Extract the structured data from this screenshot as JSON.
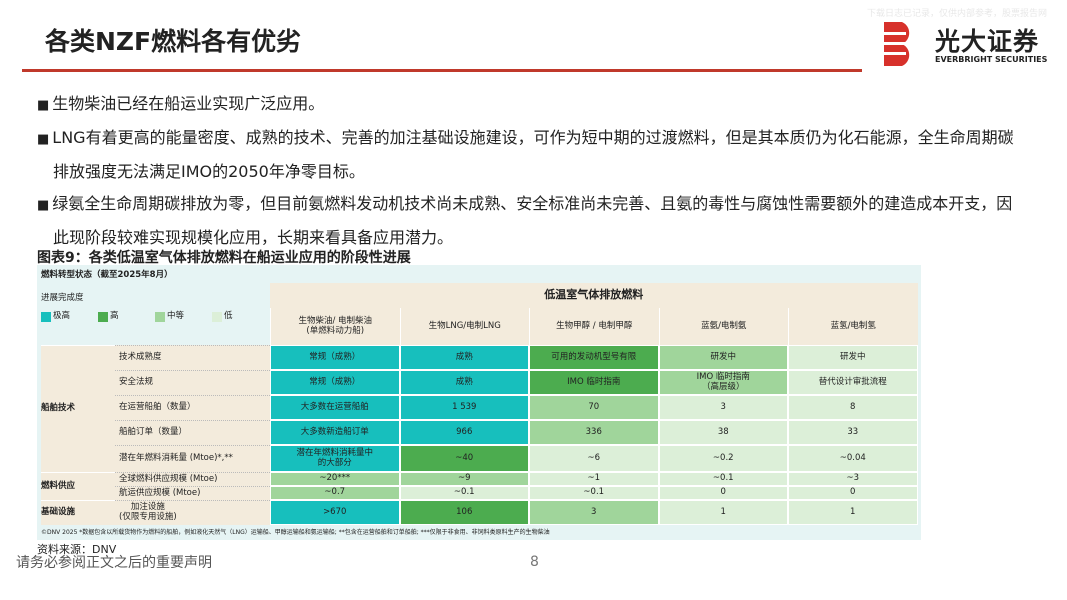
{
  "header": {
    "title": "各类NZF燃料各有优劣",
    "logo_name": "光大证券",
    "logo_sub": "EVERBRIGHT SECURITIES",
    "watermark": "下载日志已记录，仅供内部参考，股票报告网"
  },
  "bullets": [
    "生物柴油已经在船运业实现广泛应用。",
    "LNG有着更高的能量密度、成熟的技术、完善的加注基础设施建设，可作为短中期的过渡燃料，但是其本质仍为化石能源，全生命周期碳排放强度无法满足IMO的2050年净零目标。",
    "绿氨全生命周期碳排放为零，但目前氨燃料发动机技术尚未成熟、安全标准尚未完善、且氨的毒性与腐蚀性需要额外的建造成本开支，因此现阶段较难实现规模化应用，长期来看具备应用潜力。"
  ],
  "figure_title": "图表9：各类低温室气体排放燃料在船运业应用的阶段性进展",
  "table": {
    "status_title": "燃料转型状态（截至2025年8月）",
    "legend_title": "进展完成度",
    "legend": [
      {
        "label": "极高",
        "color": "#17bfbd"
      },
      {
        "label": "高",
        "color": "#4cac4f"
      },
      {
        "label": "中等",
        "color": "#a0d59b"
      },
      {
        "label": "低",
        "color": "#dcefd8"
      }
    ],
    "group_header": "低温室气体排放燃料",
    "columns": [
      "生物柴油/ 电制柴油\n(单燃料动力船)",
      "生物LNG/电制LNG",
      "生物甲醇 / 电制甲醇",
      "蓝氨/电制氨",
      "蓝氢/电制氢"
    ],
    "groups": [
      {
        "name": "船舶技术",
        "rows": [
          {
            "label": "技术成熟度",
            "cells": [
              {
                "text": "常规（成熟）",
                "color": "#17bfbd"
              },
              {
                "text": "成熟",
                "color": "#17bfbd"
              },
              {
                "text": "可用的发动机型号有限",
                "color": "#4cac4f"
              },
              {
                "text": "研发中",
                "color": "#a0d59b"
              },
              {
                "text": "研发中",
                "color": "#dcefd8"
              }
            ]
          },
          {
            "label": "安全法规",
            "cells": [
              {
                "text": "常规（成熟）",
                "color": "#17bfbd"
              },
              {
                "text": "成熟",
                "color": "#17bfbd"
              },
              {
                "text": "IMO 临时指南",
                "color": "#4cac4f"
              },
              {
                "text": "IMO 临时指南\n（高层级）",
                "color": "#a0d59b"
              },
              {
                "text": "替代设计审批流程",
                "color": "#dcefd8"
              }
            ]
          },
          {
            "label": "在运营船舶（数量）",
            "cells": [
              {
                "text": "大多数在运营船舶",
                "color": "#17bfbd"
              },
              {
                "text": "1 539",
                "color": "#17bfbd"
              },
              {
                "text": "70",
                "color": "#a0d59b"
              },
              {
                "text": "3",
                "color": "#dcefd8"
              },
              {
                "text": "8",
                "color": "#dcefd8"
              }
            ]
          },
          {
            "label": "船舶订单（数量）",
            "cells": [
              {
                "text": "大多数新造船订单",
                "color": "#17bfbd"
              },
              {
                "text": "966",
                "color": "#17bfbd"
              },
              {
                "text": "336",
                "color": "#a0d59b"
              },
              {
                "text": "38",
                "color": "#dcefd8"
              },
              {
                "text": "33",
                "color": "#dcefd8"
              }
            ]
          },
          {
            "label": "潜在年燃料消耗量 (Mtoe)*,**",
            "cells": [
              {
                "text": "潜在年燃料消耗量中\n的大部分",
                "color": "#17bfbd"
              },
              {
                "text": "~40",
                "color": "#4cac4f"
              },
              {
                "text": "~6",
                "color": "#dcefd8"
              },
              {
                "text": "~0.2",
                "color": "#dcefd8"
              },
              {
                "text": "~0.04",
                "color": "#dcefd8"
              }
            ]
          }
        ]
      },
      {
        "name": "燃料供应",
        "rows": [
          {
            "label": "全球燃料供应规模 (Mtoe)",
            "cells": [
              {
                "text": "~20***",
                "color": "#a0d59b"
              },
              {
                "text": "~9",
                "color": "#a0d59b"
              },
              {
                "text": "~1",
                "color": "#dcefd8"
              },
              {
                "text": "~0.1",
                "color": "#dcefd8"
              },
              {
                "text": "~3",
                "color": "#dcefd8"
              }
            ]
          },
          {
            "label": "航运供应规模 (Mtoe)",
            "cells": [
              {
                "text": "~0.7",
                "color": "#a0d59b"
              },
              {
                "text": "~0.1",
                "color": "#dcefd8"
              },
              {
                "text": "~0.1",
                "color": "#dcefd8"
              },
              {
                "text": "0",
                "color": "#dcefd8"
              },
              {
                "text": "0",
                "color": "#dcefd8"
              }
            ]
          }
        ]
      },
      {
        "name": "基础设施",
        "rows": [
          {
            "label": "加注设施\n(仅限专用设施)",
            "cells": [
              {
                "text": ">670",
                "color": "#17bfbd"
              },
              {
                "text": "106",
                "color": "#4cac4f"
              },
              {
                "text": "3",
                "color": "#a0d59b"
              },
              {
                "text": "1",
                "color": "#dcefd8"
              },
              {
                "text": "1",
                "color": "#dcefd8"
              }
            ]
          }
        ]
      }
    ],
    "footnote": "©DNV 2025   *数据包含以所载货物作为燃料的船舶，例如液化天然气（LNG）运输船、甲醇运输船和氨运输船; **包含在运营船舶和订单船舶; ***仅限于非食用、非饲料类原料生产的生物柴油"
  },
  "source": "资料来源：DNV",
  "footer": {
    "disclaimer": "请务必参阅正文之后的重要声明",
    "page": "8"
  }
}
